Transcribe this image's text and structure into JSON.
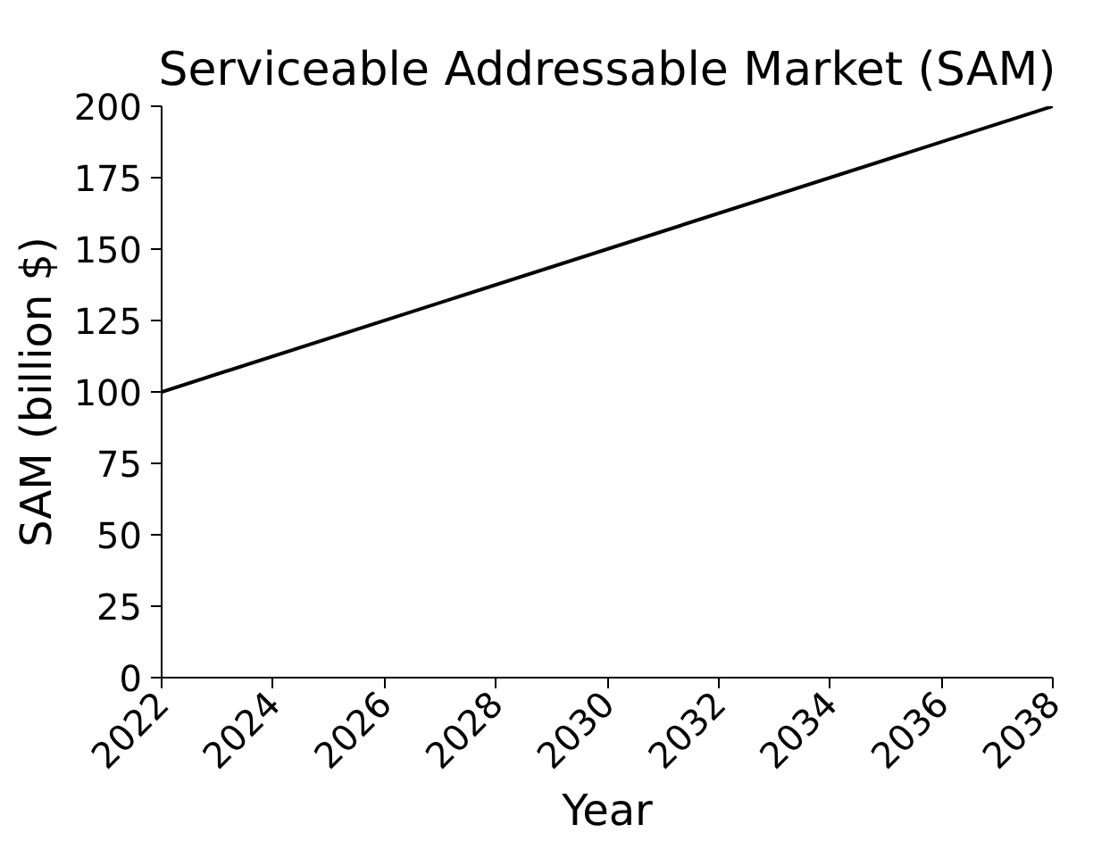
{
  "chart_data": {
    "type": "line",
    "title": "Serviceable Addressable Market (SAM)",
    "xlabel": "Year",
    "ylabel": "SAM (billion $)",
    "x": [
      2022,
      2038
    ],
    "series": [
      {
        "color": "#000000",
        "values": [
          100,
          200
        ]
      }
    ],
    "xlim": [
      2022,
      2038
    ],
    "xticks": [
      2022,
      2024,
      2026,
      2028,
      2030,
      2032,
      2034,
      2036,
      2038
    ],
    "ylim": [
      0,
      200
    ],
    "yticks": [
      0,
      25,
      50,
      75,
      100,
      125,
      150,
      175,
      200
    ],
    "grid": false,
    "marker": "none",
    "line_style": "solid"
  }
}
